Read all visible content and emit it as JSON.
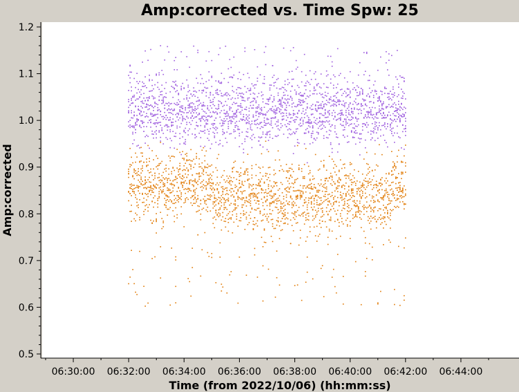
{
  "chart_data": {
    "type": "scatter",
    "title": "Amp:corrected vs. Time Spw: 25",
    "xlabel": "Time (from 2022/10/06) (hh:mm:ss)",
    "ylabel": "Amp:corrected",
    "x_ticks": [
      "06:30:00",
      "06:32:00",
      "06:34:00",
      "06:36:00",
      "06:38:00",
      "06:40:00",
      "06:42:00",
      "06:44:00"
    ],
    "y_ticks": [
      "0.5",
      "0.6",
      "0.7",
      "0.8",
      "0.9",
      "1.0",
      "1.1",
      "1.2"
    ],
    "xlim": [
      "06:29:00",
      "06:45:00"
    ],
    "ylim": [
      0.5,
      1.2
    ],
    "grid": false,
    "legend": "none",
    "time_range": [
      "06:32:00",
      "06:42:00"
    ],
    "series": [
      {
        "color": "#9955dd",
        "y_range": [
          0.88,
          1.16
        ]
      },
      {
        "color": "#e07800",
        "y_range": [
          0.6,
          1.0
        ]
      }
    ]
  }
}
